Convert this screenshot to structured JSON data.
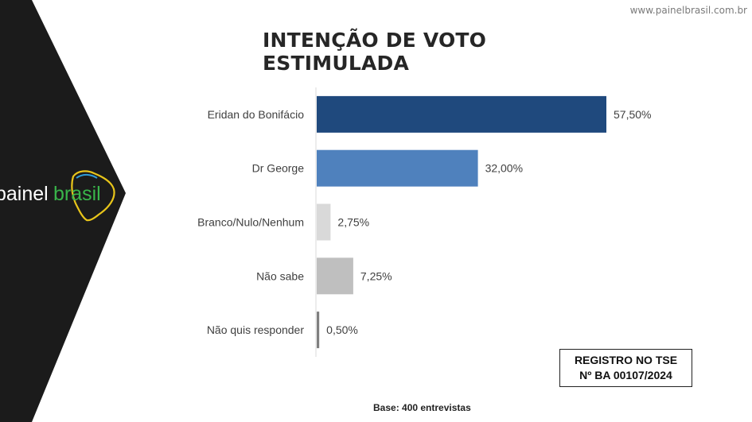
{
  "header": {
    "url": "www.painelbrasil.com.br"
  },
  "brand": {
    "logo_text": "painelbrasil",
    "logo_part1": "painel",
    "logo_part2": "brasil"
  },
  "title": "INTENÇÃO DE VOTO ESTIMULADA",
  "registro": {
    "line1": "REGISTRO NO TSE",
    "line2": "Nº BA 00107/2024"
  },
  "footer": {
    "base": "Base: 400 entrevistas"
  },
  "colors": {
    "panel": "#1b1b1b",
    "series": [
      "#1f497d",
      "#4f81bd",
      "#d9d9d9",
      "#bfbfbf",
      "#7f7f7f"
    ]
  },
  "chart_data": {
    "type": "bar",
    "orientation": "horizontal",
    "title": "INTENÇÃO DE VOTO ESTIMULADA",
    "categories": [
      "Eridan do Bonifácio",
      "Dr George",
      "Branco/Nulo/Nenhum",
      "Não sabe",
      "Não quis responder"
    ],
    "values": [
      57.5,
      32.0,
      2.75,
      7.25,
      0.5
    ],
    "labels": [
      "57,50%",
      "32,00%",
      "2,75%",
      "7,25%",
      "0,50%"
    ],
    "xlim": [
      0,
      70
    ],
    "grid": false,
    "legend": "none"
  }
}
